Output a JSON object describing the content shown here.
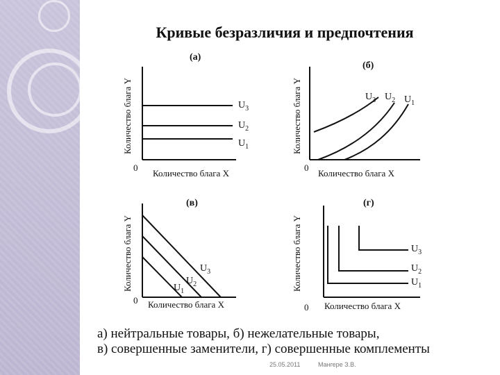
{
  "title": "Кривые безразличия и предпочтения",
  "panels": {
    "a": {
      "label": "(а)",
      "ylabel": "Количество блага Y",
      "xlabel": "Количество блага X",
      "origin": "0",
      "curves": [
        {
          "sym": "U",
          "sub": "3"
        },
        {
          "sym": "U",
          "sub": "2"
        },
        {
          "sym": "U",
          "sub": "1"
        }
      ]
    },
    "b": {
      "label": "(б)",
      "ylabel": "Количество блага Y",
      "xlabel": "Количество блага X",
      "origin": "0",
      "curves": [
        {
          "sym": "U",
          "sub": "3"
        },
        {
          "sym": "U",
          "sub": "2"
        },
        {
          "sym": "U",
          "sub": "1"
        }
      ]
    },
    "v": {
      "label": "(в)",
      "ylabel": "Количество блага Y",
      "xlabel": "Количество блага X",
      "origin": "0",
      "curves": [
        {
          "sym": "U",
          "sub": "3"
        },
        {
          "sym": "U",
          "sub": "2"
        },
        {
          "sym": "U",
          "sub": "1"
        }
      ]
    },
    "g": {
      "label": "(г)",
      "ylabel": "Количество блага Y",
      "xlabel": "Количество блага X",
      "origin": "0",
      "curves": [
        {
          "sym": "U",
          "sub": "3"
        },
        {
          "sym": "U",
          "sub": "2"
        },
        {
          "sym": "U",
          "sub": "1"
        }
      ]
    }
  },
  "caption": {
    "line1": "а) нейтральные товары, б) нежелательные товары,",
    "line2": "в) совершенные заменители, г) совершенные комплементы"
  },
  "footer": {
    "date": "25.05.2011",
    "author": "Мангере З.В."
  }
}
